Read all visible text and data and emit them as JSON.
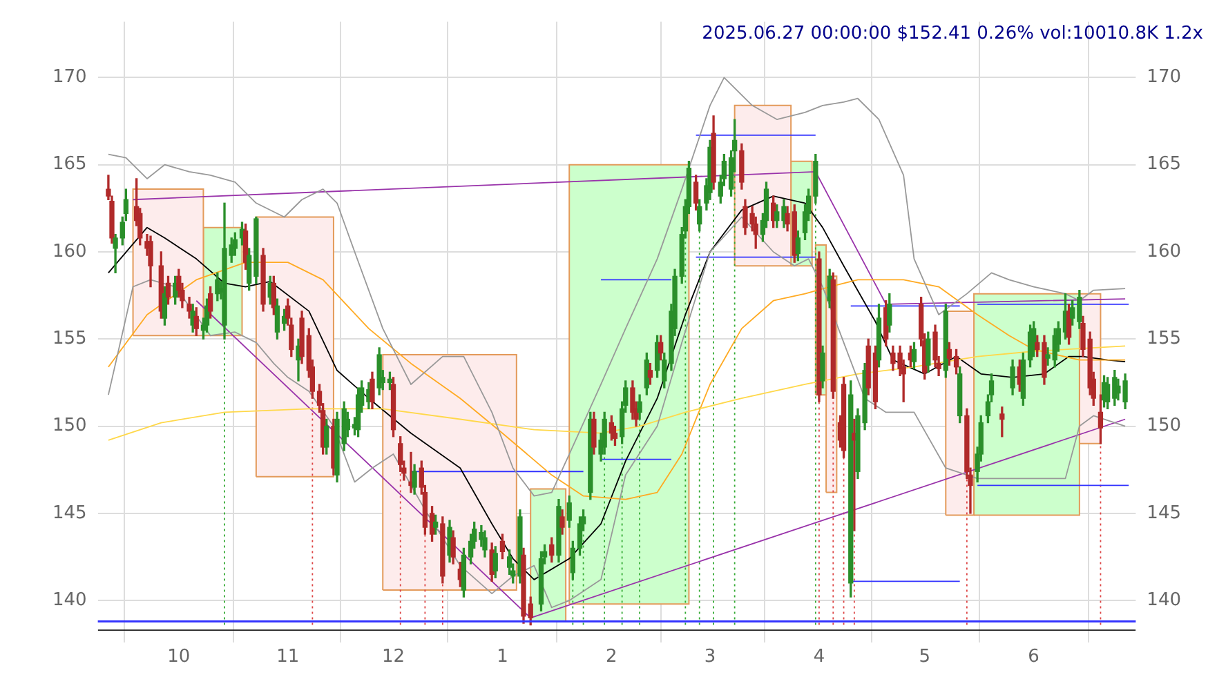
{
  "chart_data": {
    "type": "candlestick",
    "title": "2025.06.27 00:00:00 $152.41 0.26% vol:10010.8K 1.2x",
    "x": [
      "2024-09-11",
      "2024-09-12",
      "2024-09-13",
      "2024-09-15",
      "2024-09-16",
      "2024-09-19",
      "2024-09-20",
      "2024-09-22",
      "2024-09-23",
      "2024-09-26",
      "2024-09-27",
      "2024-09-28",
      "2024-09-30",
      "2024-10-01",
      "2024-10-02",
      "2024-10-04",
      "2024-10-05",
      "2024-10-06",
      "2024-10-08",
      "2024-10-09",
      "2024-10-10",
      "2024-10-12",
      "2024-10-13",
      "2024-10-14",
      "2024-10-16",
      "2024-10-17",
      "2024-10-19",
      "2024-10-20",
      "2024-10-21",
      "2024-10-23",
      "2024-10-25",
      "2024-10-27",
      "2024-10-28",
      "2024-10-29",
      "2024-10-31",
      "2024-11-01",
      "2024-11-02",
      "2024-11-04",
      "2024-11-05",
      "2024-11-07",
      "2024-11-08",
      "2024-11-10",
      "2024-11-11",
      "2024-11-12",
      "2024-11-14",
      "2024-11-15",
      "2024-11-17",
      "2024-11-18",
      "2024-11-20",
      "2024-11-21",
      "2024-11-22",
      "2024-11-24",
      "2024-11-25",
      "2024-11-27",
      "2024-11-28",
      "2024-11-30",
      "2024-12-01",
      "2024-12-03",
      "2024-12-04",
      "2024-12-06",
      "2024-12-07",
      "2024-12-09",
      "2024-12-10",
      "2024-12-12",
      "2024-12-13",
      "2024-12-15",
      "2024-12-17",
      "2024-12-18",
      "2024-12-20",
      "2024-12-21",
      "2024-12-23",
      "2024-12-24",
      "2024-12-26",
      "2024-12-27",
      "2024-12-29",
      "2024-12-30",
      "2025-01-01",
      "2025-01-03",
      "2025-01-04",
      "2025-01-06",
      "2025-01-07",
      "2025-01-09",
      "2025-01-12",
      "2025-01-13",
      "2025-01-15",
      "2025-01-17",
      "2025-01-18",
      "2025-01-20",
      "2025-01-21",
      "2025-01-23",
      "2025-01-24",
      "2025-01-26",
      "2025-01-27",
      "2025-01-29",
      "2025-01-30",
      "2025-02-01",
      "2025-02-02",
      "2025-02-04",
      "2025-02-05",
      "2025-02-07",
      "2025-02-08",
      "2025-02-09",
      "2025-02-11",
      "2025-02-12",
      "2025-02-14",
      "2025-02-15",
      "2025-02-16",
      "2025-02-18",
      "2025-02-19",
      "2025-02-21",
      "2025-02-22",
      "2025-02-23",
      "2025-02-25",
      "2025-02-26",
      "2025-02-28",
      "2025-03-01",
      "2025-03-02",
      "2025-03-04",
      "2025-03-05",
      "2025-03-07",
      "2025-03-08",
      "2025-03-10",
      "2025-03-11",
      "2025-03-13",
      "2025-03-14",
      "2025-03-16",
      "2025-03-17",
      "2025-03-19",
      "2025-03-20",
      "2025-03-22",
      "2025-03-23",
      "2025-03-25",
      "2025-03-26",
      "2025-03-28",
      "2025-03-29",
      "2025-03-31",
      "2025-04-01",
      "2025-04-02",
      "2025-04-04",
      "2025-04-05",
      "2025-04-07",
      "2025-04-08",
      "2025-04-10",
      "2025-04-11",
      "2025-04-12",
      "2025-04-14",
      "2025-04-15",
      "2025-04-17",
      "2025-04-18",
      "2025-04-20",
      "2025-04-21",
      "2025-04-22",
      "2025-04-24",
      "2025-04-25",
      "2025-04-27",
      "2025-04-28",
      "2025-04-30",
      "2025-05-01",
      "2025-05-02",
      "2025-05-04",
      "2025-05-05",
      "2025-05-07",
      "2025-05-08",
      "2025-05-10",
      "2025-05-11",
      "2025-05-13",
      "2025-05-14",
      "2025-05-16",
      "2025-05-17",
      "2025-05-19",
      "2025-05-20",
      "2025-05-23",
      "2025-05-26",
      "2025-05-28",
      "2025-05-29",
      "2025-05-31",
      "2025-06-01",
      "2025-06-02",
      "2025-06-04",
      "2025-06-05",
      "2025-06-07",
      "2025-06-08",
      "2025-06-10",
      "2025-06-11",
      "2025-06-12",
      "2025-06-14",
      "2025-06-15",
      "2025-06-17",
      "2025-06-18",
      "2025-06-20",
      "2025-06-21",
      "2025-06-22",
      "2025-06-24",
      "2025-06-25",
      "2025-06-27"
    ],
    "ohlc": [
      [
        163.6,
        164.4,
        163.0,
        163.2
      ],
      [
        162.9,
        163.2,
        160.5,
        160.8
      ],
      [
        160.2,
        161.0,
        158.8,
        160.8
      ],
      [
        160.8,
        162.0,
        160.4,
        161.7
      ],
      [
        162.2,
        163.6,
        161.8,
        163.0
      ],
      [
        162.6,
        164.2,
        161.5,
        161.8
      ],
      [
        162.2,
        162.5,
        160.4,
        160.8
      ],
      [
        160.6,
        161.0,
        159.8,
        160.2
      ],
      [
        160.6,
        160.9,
        158.0,
        159.2
      ],
      [
        159.2,
        160.0,
        156.2,
        156.6
      ],
      [
        156.2,
        158.0,
        155.8,
        157.6
      ],
      [
        158.2,
        158.6,
        157.0,
        157.4
      ],
      [
        157.4,
        158.6,
        157.0,
        158.2
      ],
      [
        158.6,
        159.0,
        157.4,
        157.8
      ],
      [
        157.8,
        158.2,
        156.8,
        157.2
      ],
      [
        157.0,
        157.4,
        156.2,
        156.6
      ],
      [
        155.8,
        157.0,
        155.4,
        156.6
      ],
      [
        156.3,
        156.8,
        155.2,
        155.6
      ],
      [
        155.5,
        156.2,
        155.0,
        155.8
      ],
      [
        155.8,
        157.3,
        155.4,
        156.9
      ],
      [
        157.6,
        158.0,
        156.2,
        156.6
      ],
      [
        157.6,
        158.8,
        157.2,
        158.4
      ],
      [
        157.7,
        158.3,
        157.3,
        157.9
      ],
      [
        155.8,
        162.8,
        155.0,
        160.2
      ],
      [
        159.8,
        160.8,
        159.4,
        160.4
      ],
      [
        160.2,
        161.1,
        159.8,
        160.7
      ],
      [
        160.8,
        161.7,
        160.4,
        161.3
      ],
      [
        161.2,
        161.6,
        159.0,
        159.4
      ],
      [
        158.2,
        160.2,
        157.8,
        159.8
      ],
      [
        158.6,
        162.0,
        158.2,
        161.9
      ],
      [
        159.8,
        160.2,
        156.6,
        157.0
      ],
      [
        157.4,
        158.6,
        157.0,
        158.2
      ],
      [
        158.2,
        158.6,
        156.4,
        156.8
      ],
      [
        155.4,
        157.3,
        155.0,
        156.9
      ],
      [
        155.9,
        156.7,
        155.5,
        156.3
      ],
      [
        156.9,
        157.3,
        155.8,
        156.2
      ],
      [
        155.8,
        156.2,
        154.0,
        154.4
      ],
      [
        153.8,
        155.0,
        152.6,
        154.6
      ],
      [
        156.2,
        156.6,
        153.6,
        154.0
      ],
      [
        155.2,
        155.6,
        152.8,
        153.2
      ],
      [
        153.4,
        153.8,
        151.6,
        152.0
      ],
      [
        152.0,
        152.4,
        150.8,
        151.2
      ],
      [
        150.9,
        151.3,
        148.4,
        148.8
      ],
      [
        148.8,
        150.4,
        148.4,
        150.0
      ],
      [
        150.0,
        150.4,
        147.2,
        147.6
      ],
      [
        147.2,
        150.8,
        146.8,
        150.4
      ],
      [
        149.0,
        151.4,
        148.6,
        151.0
      ],
      [
        149.8,
        150.8,
        149.4,
        150.4
      ],
      [
        149.9,
        150.5,
        149.5,
        150.1
      ],
      [
        149.8,
        152.2,
        149.4,
        151.8
      ],
      [
        151.2,
        152.6,
        150.8,
        152.2
      ],
      [
        151.4,
        152.5,
        151.0,
        152.1
      ],
      [
        152.7,
        153.1,
        151.0,
        151.4
      ],
      [
        152.2,
        154.5,
        151.8,
        154.1
      ],
      [
        152.5,
        153.2,
        152.1,
        152.8
      ],
      [
        152.5,
        153.1,
        152.1,
        152.7
      ],
      [
        152.4,
        152.8,
        149.4,
        149.8
      ],
      [
        149.0,
        149.4,
        147.4,
        147.8
      ],
      [
        147.6,
        148.0,
        146.9,
        147.3
      ],
      [
        146.8,
        148.5,
        146.2,
        146.6
      ],
      [
        146.5,
        147.8,
        146.1,
        147.4
      ],
      [
        147.6,
        148.0,
        146.1,
        146.5
      ],
      [
        146.2,
        146.6,
        143.8,
        144.2
      ],
      [
        145.0,
        145.4,
        143.4,
        143.8
      ],
      [
        144.2,
        144.9,
        143.8,
        144.5
      ],
      [
        144.4,
        144.8,
        141.0,
        141.4
      ],
      [
        142.6,
        144.6,
        142.2,
        144.2
      ],
      [
        143.6,
        144.0,
        142.1,
        142.5
      ],
      [
        141.8,
        142.2,
        140.8,
        141.2
      ],
      [
        140.6,
        143.0,
        140.2,
        142.6
      ],
      [
        142.5,
        143.8,
        142.1,
        143.4
      ],
      [
        143.4,
        144.5,
        143.0,
        144.1
      ],
      [
        143.5,
        144.3,
        143.1,
        143.9
      ],
      [
        142.9,
        144.0,
        142.5,
        143.6
      ],
      [
        142.9,
        143.3,
        141.1,
        141.5
      ],
      [
        141.7,
        143.1,
        141.3,
        142.7
      ],
      [
        143.4,
        143.8,
        142.4,
        142.8
      ],
      [
        141.9,
        142.9,
        141.5,
        142.5
      ],
      [
        141.4,
        142.1,
        141.0,
        141.7
      ],
      [
        141.4,
        145.2,
        141.0,
        144.8
      ],
      [
        142.6,
        143.0,
        138.7,
        139.1
      ],
      [
        139.8,
        140.2,
        138.6,
        139.0
      ],
      [
        139.8,
        142.8,
        139.4,
        142.4
      ],
      [
        142.5,
        143.2,
        142.1,
        142.8
      ],
      [
        143.2,
        143.6,
        142.2,
        142.6
      ],
      [
        142.6,
        145.8,
        142.2,
        145.4
      ],
      [
        144.8,
        145.2,
        143.8,
        144.2
      ],
      [
        144.6,
        146.0,
        144.2,
        145.6
      ],
      [
        141.6,
        143.4,
        141.2,
        143.0
      ],
      [
        143.0,
        144.8,
        142.6,
        144.4
      ],
      [
        144.4,
        145.2,
        144.0,
        144.8
      ],
      [
        146.2,
        150.8,
        145.8,
        150.4
      ],
      [
        150.4,
        150.8,
        148.4,
        148.8
      ],
      [
        148.4,
        149.6,
        148.0,
        149.2
      ],
      [
        148.8,
        150.8,
        148.4,
        150.4
      ],
      [
        150.2,
        150.6,
        149.2,
        149.6
      ],
      [
        149.6,
        150.0,
        148.9,
        149.3
      ],
      [
        149.4,
        151.4,
        149.0,
        151.0
      ],
      [
        151.2,
        152.6,
        150.8,
        152.2
      ],
      [
        152.2,
        152.6,
        150.4,
        150.8
      ],
      [
        151.0,
        151.4,
        150.0,
        150.4
      ],
      [
        150.8,
        151.8,
        150.4,
        151.4
      ],
      [
        152.2,
        154.2,
        151.8,
        153.8
      ],
      [
        153.2,
        153.6,
        152.4,
        152.8
      ],
      [
        153.2,
        155.2,
        152.8,
        154.8
      ],
      [
        154.8,
        155.2,
        153.8,
        154.2
      ],
      [
        152.6,
        154.2,
        152.2,
        153.8
      ],
      [
        153.6,
        157.0,
        153.2,
        156.6
      ],
      [
        155.6,
        159.0,
        155.2,
        158.6
      ],
      [
        158.6,
        161.4,
        158.2,
        161.0
      ],
      [
        161.2,
        163.0,
        160.8,
        162.6
      ],
      [
        162.6,
        165.2,
        162.2,
        164.8
      ],
      [
        164.0,
        164.4,
        162.4,
        162.8
      ],
      [
        161.6,
        163.0,
        161.2,
        162.6
      ],
      [
        162.8,
        164.2,
        162.4,
        163.8
      ],
      [
        163.4,
        166.4,
        163.0,
        166.0
      ],
      [
        166.8,
        167.8,
        163.6,
        164.0
      ],
      [
        163.2,
        164.4,
        162.8,
        164.0
      ],
      [
        164.2,
        165.6,
        163.8,
        165.2
      ],
      [
        163.6,
        165.8,
        163.2,
        165.4
      ],
      [
        165.8,
        167.6,
        164.6,
        166.4
      ],
      [
        165.8,
        166.2,
        163.6,
        164.0
      ],
      [
        162.6,
        163.0,
        161.0,
        161.4
      ],
      [
        162.2,
        162.6,
        161.2,
        161.6
      ],
      [
        161.6,
        162.0,
        160.2,
        161.0
      ],
      [
        161.0,
        162.2,
        160.6,
        161.8
      ],
      [
        161.8,
        164.0,
        161.4,
        163.6
      ],
      [
        162.8,
        163.2,
        161.4,
        161.8
      ],
      [
        161.8,
        162.7,
        161.4,
        162.3
      ],
      [
        161.8,
        163.0,
        161.4,
        162.6
      ],
      [
        162.2,
        162.6,
        161.2,
        161.6
      ],
      [
        162.3,
        162.7,
        159.4,
        159.8
      ],
      [
        159.9,
        161.2,
        159.5,
        160.8
      ],
      [
        161.1,
        162.7,
        160.7,
        162.3
      ],
      [
        162.2,
        163.6,
        161.8,
        163.2
      ],
      [
        163.2,
        165.6,
        162.8,
        165.2
      ],
      [
        159.6,
        160.0,
        151.4,
        151.8
      ],
      [
        152.6,
        154.6,
        152.2,
        154.2
      ],
      [
        157.2,
        159.0,
        156.8,
        158.6
      ],
      [
        158.4,
        158.8,
        151.6,
        152.0
      ],
      [
        150.2,
        150.6,
        148.8,
        149.2
      ],
      [
        152.4,
        152.8,
        148.2,
        148.6
      ],
      [
        141.0,
        152.6,
        140.2,
        151.8
      ],
      [
        149.6,
        150.4,
        144.0,
        149.2
      ],
      [
        147.4,
        151.0,
        147.0,
        150.6
      ],
      [
        150.2,
        153.6,
        149.8,
        153.2
      ],
      [
        154.6,
        155.0,
        151.8,
        152.2
      ],
      [
        154.2,
        154.6,
        151.0,
        151.4
      ],
      [
        153.8,
        157.0,
        153.4,
        156.2
      ],
      [
        156.8,
        157.2,
        154.6,
        155.0
      ],
      [
        155.8,
        157.6,
        155.4,
        157.0
      ],
      [
        154.2,
        154.6,
        153.2,
        153.6
      ],
      [
        154.2,
        154.6,
        152.9,
        153.3
      ],
      [
        153.4,
        153.8,
        151.4,
        153.0
      ],
      [
        154.2,
        154.6,
        153.4,
        153.8
      ],
      [
        153.7,
        154.8,
        153.3,
        154.4
      ],
      [
        157.0,
        157.4,
        154.6,
        155.0
      ],
      [
        154.9,
        155.3,
        152.7,
        153.1
      ],
      [
        153.5,
        155.4,
        153.1,
        155.0
      ],
      [
        155.4,
        155.8,
        153.4,
        153.8
      ],
      [
        153.6,
        154.0,
        152.9,
        153.3
      ],
      [
        153.2,
        157.0,
        152.8,
        156.6
      ],
      [
        154.4,
        154.8,
        153.5,
        153.9
      ],
      [
        154.0,
        154.4,
        153.0,
        153.4
      ],
      [
        150.6,
        153.4,
        150.2,
        153.0
      ],
      [
        150.6,
        151.0,
        147.0,
        147.4
      ],
      [
        147.2,
        147.6,
        145.0,
        146.6
      ],
      [
        147.4,
        148.8,
        146.8,
        148.4
      ],
      [
        148.4,
        150.6,
        148.0,
        150.2
      ],
      [
        150.6,
        151.8,
        150.2,
        151.4
      ],
      [
        151.8,
        153.0,
        151.4,
        152.6
      ],
      [
        150.7,
        151.1,
        149.4,
        150.4
      ],
      [
        152.2,
        153.8,
        151.8,
        153.4
      ],
      [
        153.4,
        153.8,
        152.0,
        152.4
      ],
      [
        151.6,
        154.2,
        151.2,
        153.8
      ],
      [
        153.8,
        155.8,
        153.4,
        155.4
      ],
      [
        154.4,
        156.0,
        154.0,
        155.6
      ],
      [
        154.8,
        155.2,
        154.0,
        154.4
      ],
      [
        154.8,
        155.2,
        152.4,
        152.8
      ],
      [
        153.9,
        154.5,
        153.5,
        154.1
      ],
      [
        153.8,
        155.6,
        153.4,
        155.2
      ],
      [
        154.7,
        156.0,
        154.3,
        155.6
      ],
      [
        155.4,
        157.6,
        155.0,
        156.6
      ],
      [
        156.6,
        157.0,
        154.7,
        155.1
      ],
      [
        156.2,
        157.2,
        155.8,
        156.8
      ],
      [
        156.0,
        157.8,
        155.6,
        157.4
      ],
      [
        155.9,
        156.3,
        154.0,
        154.4
      ],
      [
        155.0,
        155.4,
        151.8,
        152.2
      ],
      [
        152.7,
        153.1,
        151.2,
        151.6
      ],
      [
        150.8,
        151.8,
        149.0,
        149.9
      ],
      [
        151.5,
        152.9,
        151.1,
        152.5
      ],
      [
        151.4,
        152.8,
        151.0,
        152.4
      ],
      [
        151.6,
        153.2,
        151.2,
        152.8
      ],
      [
        151.9,
        152.7,
        151.5,
        152.3
      ],
      [
        151.4,
        153.0,
        151.0,
        152.6
      ]
    ],
    "series": [
      {
        "type": "area",
        "color": "#fdecec",
        "x": [
          "2024-09-18",
          "2024-09-18",
          "2024-10-08",
          "2024-10-08",
          "2024-09-18"
        ],
        "values": [
          155.2,
          163.6,
          163.6,
          155.2,
          155.2
        ]
      },
      {
        "type": "area",
        "color": "#ccffcc",
        "x": [
          "2024-10-08",
          "2024-10-08",
          "2024-10-19",
          "2024-10-19",
          "2024-10-08"
        ],
        "values": [
          155.2,
          161.4,
          161.4,
          155.2,
          155.2
        ]
      },
      {
        "type": "area",
        "color": "#fdecec",
        "x": [
          "2024-10-23",
          "2024-10-23",
          "2024-11-14",
          "2024-11-14",
          "2024-10-23"
        ],
        "values": [
          147.1,
          162,
          162,
          147.1,
          147.1
        ]
      },
      {
        "type": "area",
        "color": "#fdecec",
        "x": [
          "2024-11-28",
          "2024-11-28",
          "2025-01-05",
          "2025-01-05",
          "2024-11-28"
        ],
        "values": [
          140.6,
          154.1,
          154.1,
          140.6,
          140.6
        ]
      },
      {
        "type": "area",
        "color": "#ccffcc",
        "x": [
          "2025-01-09",
          "2025-01-09",
          "2025-01-19",
          "2025-01-19",
          "2025-01-09"
        ],
        "values": [
          138.8,
          146.4,
          146.4,
          138.8,
          138.8
        ]
      },
      {
        "type": "area",
        "color": "#ccffcc",
        "x": [
          "2025-01-20",
          "2025-01-20",
          "2025-02-23",
          "2025-02-23",
          "2025-01-20"
        ],
        "values": [
          139.8,
          165,
          165,
          139.8,
          139.8
        ]
      },
      {
        "type": "area",
        "color": "#fdecec",
        "x": [
          "2025-03-08",
          "2025-03-08",
          "2025-03-24",
          "2025-03-24",
          "2025-03-08"
        ],
        "values": [
          159.2,
          168.4,
          168.4,
          159.2,
          159.2
        ]
      },
      {
        "type": "area",
        "color": "#ccffcc",
        "x": [
          "2025-03-24",
          "2025-03-24",
          "2025-03-30",
          "2025-03-30",
          "2025-03-24"
        ],
        "values": [
          159.2,
          165.2,
          165.2,
          159.2,
          159.2
        ]
      },
      {
        "type": "area",
        "color": "#ccffcc",
        "x": [
          "2025-03-31",
          "2025-03-31",
          "2025-04-03",
          "2025-04-03",
          "2025-03-31"
        ],
        "values": [
          151.8,
          160.4,
          160.4,
          151.8,
          151.8
        ]
      },
      {
        "type": "area",
        "color": "#fdecec",
        "x": [
          "2025-04-03",
          "2025-04-03",
          "2025-04-06",
          "2025-04-06",
          "2025-04-03"
        ],
        "values": [
          146.2,
          158.6,
          158.6,
          146.2,
          146.2
        ]
      },
      {
        "type": "area",
        "color": "#fdecec",
        "x": [
          "2025-05-07",
          "2025-05-07",
          "2025-05-15",
          "2025-05-15",
          "2025-05-07"
        ],
        "values": [
          144.9,
          156.6,
          156.6,
          144.9,
          144.9
        ]
      },
      {
        "type": "area",
        "color": "#ccffcc",
        "x": [
          "2025-05-15",
          "2025-05-15",
          "2025-06-14",
          "2025-06-14",
          "2025-05-15"
        ],
        "values": [
          144.9,
          157.6,
          157.6,
          144.9,
          144.9
        ]
      },
      {
        "type": "area",
        "color": "#fdecec",
        "x": [
          "2025-06-14",
          "2025-06-14",
          "2025-06-20",
          "2025-06-20",
          "2025-06-14"
        ],
        "values": [
          149,
          157.6,
          157.6,
          149,
          149
        ]
      },
      {
        "type": "line",
        "color": "#999999",
        "x": [
          "2024-09-11",
          "2024-09-16",
          "2024-09-22",
          "2024-09-27",
          "2024-10-04",
          "2024-10-10",
          "2024-10-17",
          "2024-10-23",
          "2024-10-31",
          "2024-11-05",
          "2024-11-11",
          "2024-11-15",
          "2024-11-20",
          "2024-11-28",
          "2024-12-06",
          "2024-12-15",
          "2024-12-21",
          "2024-12-29",
          "2025-01-04",
          "2025-01-10",
          "2025-01-15",
          "2025-01-20",
          "2025-01-29",
          "2025-02-05",
          "2025-02-14",
          "2025-02-21",
          "2025-03-01",
          "2025-03-05",
          "2025-03-13",
          "2025-03-20",
          "2025-03-28",
          "2025-04-02",
          "2025-04-08",
          "2025-04-12",
          "2025-04-18",
          "2025-04-25",
          "2025-04-28",
          "2025-05-05",
          "2025-05-13",
          "2025-05-20",
          "2025-05-25",
          "2025-06-01",
          "2025-06-10",
          "2025-06-14",
          "2025-06-18",
          "2025-06-27"
        ],
        "values": [
          165.6,
          165.4,
          164.2,
          165,
          164.6,
          164.4,
          164,
          162.8,
          162,
          163,
          163.6,
          162.8,
          160,
          155.6,
          152.4,
          154,
          154,
          150.8,
          147.6,
          146,
          146.2,
          148.4,
          152.4,
          155.6,
          159.6,
          163.6,
          168.4,
          170,
          168.4,
          167.6,
          168,
          168.4,
          168.6,
          168.8,
          167.6,
          164.4,
          159.6,
          156.4,
          157.6,
          158.8,
          158.4,
          158,
          157.6,
          157.2,
          157.8,
          157.9
        ]
      },
      {
        "type": "line",
        "color": "#999999",
        "x": [
          "2024-09-11",
          "2024-09-18",
          "2024-09-23",
          "2024-09-30",
          "2024-10-10",
          "2024-10-17",
          "2024-10-23",
          "2024-10-28",
          "2024-11-01",
          "2024-11-07",
          "2024-11-14",
          "2024-11-20",
          "2024-11-25",
          "2024-12-01",
          "2024-12-10",
          "2024-12-20",
          "2024-12-29",
          "2025-01-04",
          "2025-01-10",
          "2025-01-15",
          "2025-01-20",
          "2025-01-29",
          "2025-02-05",
          "2025-02-14",
          "2025-02-21",
          "2025-03-01",
          "2025-03-10",
          "2025-03-19",
          "2025-03-25",
          "2025-03-29",
          "2025-04-02",
          "2025-04-08",
          "2025-04-14",
          "2025-04-20",
          "2025-04-28",
          "2025-05-07",
          "2025-05-16",
          "2025-05-25",
          "2025-06-01",
          "2025-06-10",
          "2025-06-14",
          "2025-06-18",
          "2025-06-27"
        ],
        "values": [
          151.8,
          158,
          158.4,
          158,
          155.2,
          155.4,
          154.8,
          153.6,
          152.8,
          152,
          150,
          146.8,
          147.6,
          148.4,
          145.2,
          142,
          140.4,
          141.4,
          142,
          139.6,
          140,
          141.2,
          147.2,
          150,
          154.8,
          160,
          162,
          160,
          159.2,
          159.6,
          158,
          154.8,
          151.6,
          150.8,
          150.8,
          147.6,
          147.0,
          147.0,
          147.0,
          147.0,
          150,
          150.6,
          150
        ]
      },
      {
        "type": "line",
        "color": "#ffd84a",
        "x": [
          "2024-09-11",
          "2024-09-26",
          "2024-10-14",
          "2024-11-07",
          "2024-11-28",
          "2024-12-20",
          "2025-01-10",
          "2025-01-29",
          "2025-02-09",
          "2025-02-22",
          "2025-03-10",
          "2025-03-28",
          "2025-04-12",
          "2025-04-28",
          "2025-05-16",
          "2025-06-01",
          "2025-06-27"
        ],
        "values": [
          149.2,
          150.2,
          150.8,
          151,
          151,
          150.4,
          149.8,
          149.6,
          150,
          150.8,
          151.6,
          152.4,
          153,
          153.4,
          154,
          154.3,
          154.6
        ]
      },
      {
        "type": "line",
        "color": "#ffaa22",
        "x": [
          "2024-09-11",
          "2024-09-22",
          "2024-10-06",
          "2024-10-20",
          "2024-11-01",
          "2024-11-11",
          "2024-11-24",
          "2024-12-06",
          "2024-12-20",
          "2025-01-01",
          "2025-01-15",
          "2025-01-24",
          "2025-02-05",
          "2025-02-14",
          "2025-02-21",
          "2025-03-01",
          "2025-03-10",
          "2025-03-19",
          "2025-03-28",
          "2025-04-04",
          "2025-04-12",
          "2025-04-25",
          "2025-05-05",
          "2025-05-16",
          "2025-05-25",
          "2025-06-01",
          "2025-06-14",
          "2025-06-27"
        ],
        "values": [
          153.4,
          156.4,
          158.4,
          159.4,
          159.4,
          158.4,
          155.6,
          153.6,
          151.6,
          149.6,
          147.2,
          146,
          145.8,
          146.2,
          148.4,
          152.4,
          155.6,
          157.2,
          157.6,
          158,
          158.4,
          158.4,
          158,
          156.4,
          155.2,
          154.4,
          153.8,
          153.8
        ]
      },
      {
        "type": "line",
        "color": "#000000",
        "x": [
          "2024-09-11",
          "2024-09-22",
          "2024-09-27",
          "2024-10-06",
          "2024-10-14",
          "2024-10-20",
          "2024-10-27",
          "2024-11-07",
          "2024-11-15",
          "2024-11-24",
          "2024-12-06",
          "2024-12-20",
          "2024-12-29",
          "2025-01-04",
          "2025-01-10",
          "2025-01-20",
          "2025-01-29",
          "2025-02-05",
          "2025-02-14",
          "2025-02-22",
          "2025-03-01",
          "2025-03-10",
          "2025-03-19",
          "2025-03-28",
          "2025-04-02",
          "2025-04-08",
          "2025-04-17",
          "2025-04-22",
          "2025-05-01",
          "2025-05-10",
          "2025-05-17",
          "2025-05-26",
          "2025-06-04",
          "2025-06-11",
          "2025-06-15",
          "2025-06-22",
          "2025-06-27"
        ],
        "values": [
          158.8,
          161.4,
          160.8,
          159.6,
          158.2,
          158.0,
          158.3,
          156.6,
          153.2,
          151.6,
          149.6,
          147.6,
          144.4,
          142.4,
          141.2,
          142.4,
          144.4,
          148,
          151.6,
          156.4,
          160,
          162.4,
          163.2,
          162.8,
          161.4,
          159.2,
          156,
          153.8,
          153,
          154,
          153,
          152.8,
          153,
          154,
          154,
          153.8,
          153.7
        ]
      },
      {
        "type": "line",
        "color": "#222222",
        "x": [
          "2024-09-08",
          "2025-06-30"
        ],
        "values": [
          138.3,
          138.3
        ]
      },
      {
        "type": "line",
        "color": "#9933aa",
        "x": [
          "2024-09-18",
          "2025-03-31",
          "2025-04-20",
          "2025-06-27"
        ],
        "values": [
          163,
          164.6,
          157,
          157.3
        ]
      },
      {
        "type": "line",
        "color": "#9933aa",
        "x": [
          "2024-10-06",
          "2025-01-09",
          "2025-06-27"
        ],
        "values": [
          157.2,
          139,
          150.4
        ]
      },
      {
        "type": "line",
        "color": "#3333ff",
        "x": [
          "2024-12-06",
          "2025-01-24"
        ],
        "values": [
          147.4,
          147.4
        ]
      },
      {
        "type": "line",
        "color": "#3333ff",
        "x": [
          "2025-01-29",
          "2025-02-18"
        ],
        "values": [
          148.1,
          148.1
        ]
      },
      {
        "type": "line",
        "color": "#3333ff",
        "x": [
          "2025-01-29",
          "2025-02-18"
        ],
        "values": [
          158.4,
          158.4
        ]
      },
      {
        "type": "line",
        "color": "#3333ff",
        "x": [
          "2025-02-25",
          "2025-03-31"
        ],
        "values": [
          166.7,
          166.7
        ]
      },
      {
        "type": "line",
        "color": "#3333ff",
        "x": [
          "2025-02-25",
          "2025-03-31"
        ],
        "values": [
          159.7,
          159.7
        ]
      },
      {
        "type": "line",
        "color": "#3333ff",
        "x": [
          "2025-04-10",
          "2025-05-11"
        ],
        "values": [
          141.1,
          141.1
        ]
      },
      {
        "type": "line",
        "color": "#3333ff",
        "x": [
          "2025-04-10",
          "2025-05-11"
        ],
        "values": [
          156.9,
          156.9
        ]
      },
      {
        "type": "line",
        "color": "#3333ff",
        "x": [
          "2025-05-16",
          "2025-06-28"
        ],
        "values": [
          146.6,
          146.6
        ]
      },
      {
        "type": "line",
        "color": "#3333ff",
        "x": [
          "2025-05-16",
          "2025-06-28"
        ],
        "values": [
          157.0,
          157.0
        ]
      },
      {
        "type": "line",
        "color": "#33aa33",
        "line_style": "dotted",
        "x": [
          "2024-10-14",
          "2024-10-14"
        ],
        "values": [
          138.6,
          155.0
        ]
      },
      {
        "type": "line",
        "color": "#33aa33",
        "line_style": "dotted",
        "x": [
          "2025-01-21",
          "2025-01-21"
        ],
        "values": [
          138.6,
          141.2
        ]
      },
      {
        "type": "line",
        "color": "#33aa33",
        "line_style": "dotted",
        "x": [
          "2025-01-24",
          "2025-01-24"
        ],
        "values": [
          138.6,
          144.0
        ]
      },
      {
        "type": "line",
        "color": "#33aa33",
        "line_style": "dotted",
        "x": [
          "2025-01-30",
          "2025-01-30"
        ],
        "values": [
          138.6,
          148.4
        ]
      },
      {
        "type": "line",
        "color": "#33aa33",
        "line_style": "dotted",
        "x": [
          "2025-02-04",
          "2025-02-04"
        ],
        "values": [
          138.6,
          149.0
        ]
      },
      {
        "type": "line",
        "color": "#33aa33",
        "line_style": "dotted",
        "x": [
          "2025-02-09",
          "2025-02-09"
        ],
        "values": [
          138.6,
          150.4
        ]
      },
      {
        "type": "line",
        "color": "#33aa33",
        "line_style": "dotted",
        "x": [
          "2025-02-22",
          "2025-02-22"
        ],
        "values": [
          138.6,
          160.8
        ]
      },
      {
        "type": "line",
        "color": "#33aa33",
        "line_style": "dotted",
        "x": [
          "2025-02-26",
          "2025-02-26"
        ],
        "values": [
          138.6,
          161.2
        ]
      },
      {
        "type": "line",
        "color": "#33aa33",
        "line_style": "dotted",
        "x": [
          "2025-03-02",
          "2025-03-02"
        ],
        "values": [
          138.6,
          163.0
        ]
      },
      {
        "type": "line",
        "color": "#33aa33",
        "line_style": "dotted",
        "x": [
          "2025-03-08",
          "2025-03-08"
        ],
        "values": [
          138.6,
          164.6
        ]
      },
      {
        "type": "line",
        "color": "#33aa33",
        "line_style": "dotted",
        "x": [
          "2025-03-31",
          "2025-03-31"
        ],
        "values": [
          138.6,
          162.8
        ]
      },
      {
        "type": "line",
        "color": "#dd4444",
        "line_style": "dotted",
        "x": [
          "2024-11-08",
          "2024-11-08"
        ],
        "values": [
          138.6,
          151.6
        ]
      },
      {
        "type": "line",
        "color": "#dd4444",
        "line_style": "dotted",
        "x": [
          "2024-12-03",
          "2024-12-03"
        ],
        "values": [
          138.6,
          147.4
        ]
      },
      {
        "type": "line",
        "color": "#dd4444",
        "line_style": "dotted",
        "x": [
          "2024-12-10",
          "2024-12-10"
        ],
        "values": [
          138.6,
          143.8
        ]
      },
      {
        "type": "line",
        "color": "#dd4444",
        "line_style": "dotted",
        "x": [
          "2024-12-15",
          "2024-12-15"
        ],
        "values": [
          138.6,
          141.0
        ]
      },
      {
        "type": "line",
        "color": "#dd4444",
        "line_style": "dotted",
        "x": [
          "2025-04-01",
          "2025-04-01"
        ],
        "values": [
          138.6,
          151.4
        ]
      },
      {
        "type": "line",
        "color": "#dd4444",
        "line_style": "dotted",
        "x": [
          "2025-04-05",
          "2025-04-05"
        ],
        "values": [
          138.6,
          151.6
        ]
      },
      {
        "type": "line",
        "color": "#dd4444",
        "line_style": "dotted",
        "x": [
          "2025-04-08",
          "2025-04-08"
        ],
        "values": [
          138.6,
          148.2
        ]
      },
      {
        "type": "line",
        "color": "#dd4444",
        "line_style": "dotted",
        "x": [
          "2025-04-11",
          "2025-04-11"
        ],
        "values": [
          138.6,
          144.0
        ]
      },
      {
        "type": "line",
        "color": "#dd4444",
        "line_style": "dotted",
        "x": [
          "2025-05-13",
          "2025-05-13"
        ],
        "values": [
          138.6,
          147.0
        ]
      },
      {
        "type": "line",
        "color": "#dd4444",
        "line_style": "dotted",
        "x": [
          "2025-06-20",
          "2025-06-20"
        ],
        "values": [
          138.6,
          149.0
        ]
      }
    ],
    "ref_lines": [
      {
        "axis": "y",
        "value": 138.8,
        "color": "#3333ff"
      }
    ],
    "xlim": [
      "2024-09-08",
      "2025-06-30"
    ],
    "xticks": [
      {
        "value": "2024-10-01",
        "label": "10"
      },
      {
        "value": "2024-11-01",
        "label": "11"
      },
      {
        "value": "2024-12-01",
        "label": "12"
      },
      {
        "value": "2025-01-01",
        "label": "1"
      },
      {
        "value": "2025-02-01",
        "label": "2"
      },
      {
        "value": "2025-03-01",
        "label": "3"
      },
      {
        "value": "2025-04-01",
        "label": "4"
      },
      {
        "value": "2025-05-01",
        "label": "5"
      },
      {
        "value": "2025-06-01",
        "label": "6"
      }
    ],
    "ylim": [
      137.6,
      173.2
    ],
    "yticks": [
      140,
      145,
      150,
      155,
      160,
      165,
      170
    ],
    "y2lim": [
      137.6,
      173.2
    ],
    "y2ticks": [
      140,
      145,
      150,
      155,
      160,
      165,
      170
    ],
    "grid": true
  }
}
